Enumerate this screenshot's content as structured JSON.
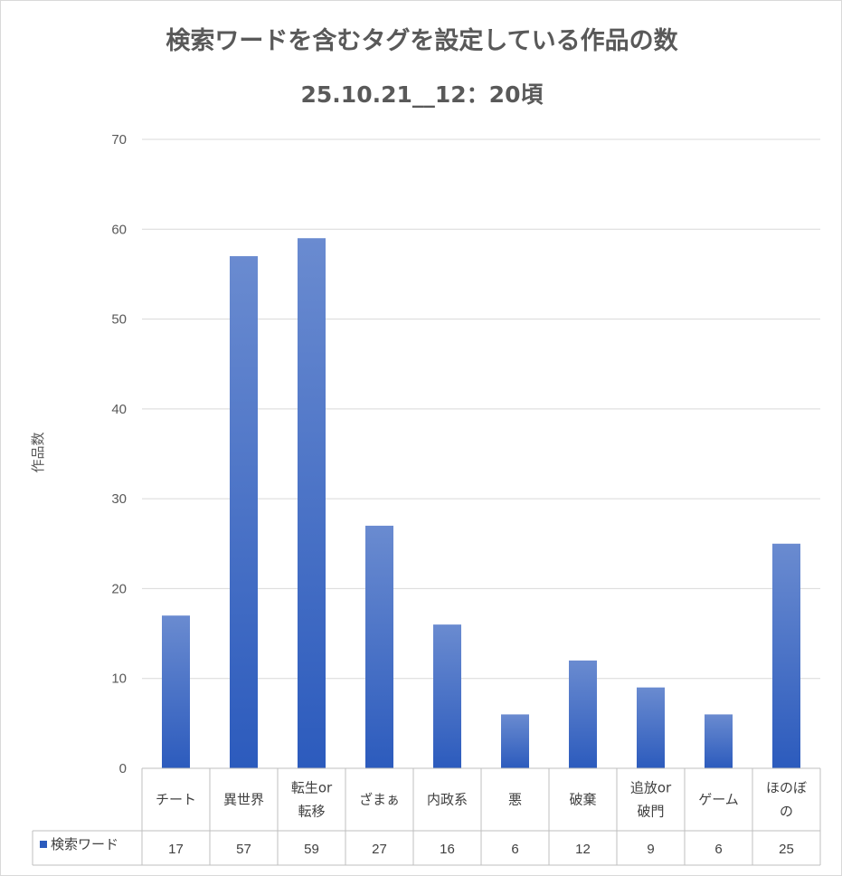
{
  "chart_data": {
    "type": "bar",
    "title": "検索ワードを含むタグを設定している作品の数",
    "subtitle": "25.10.21__12：20頃",
    "ylabel": "作品数",
    "ylim": [
      0,
      70
    ],
    "yticks": [
      0,
      10,
      20,
      30,
      40,
      50,
      60,
      70
    ],
    "grid": true,
    "categories": [
      [
        "チート"
      ],
      [
        "異世界"
      ],
      [
        "転生or",
        "転移"
      ],
      [
        "ざまぁ"
      ],
      [
        "内政系"
      ],
      [
        "悪"
      ],
      [
        "破棄"
      ],
      [
        "追放or",
        "破門"
      ],
      [
        "ゲーム"
      ],
      [
        "ほのぼ",
        "の"
      ]
    ],
    "series": [
      {
        "name": "検索ワード",
        "values": [
          17,
          57,
          59,
          27,
          16,
          6,
          12,
          9,
          6,
          25
        ]
      }
    ],
    "legend_position": "data-table",
    "colors": {
      "bar_top": "#6a8bd0",
      "bar_bottom": "#2c5bbd",
      "grid": "#d9d9d9",
      "axis": "#bfbfbf"
    }
  }
}
